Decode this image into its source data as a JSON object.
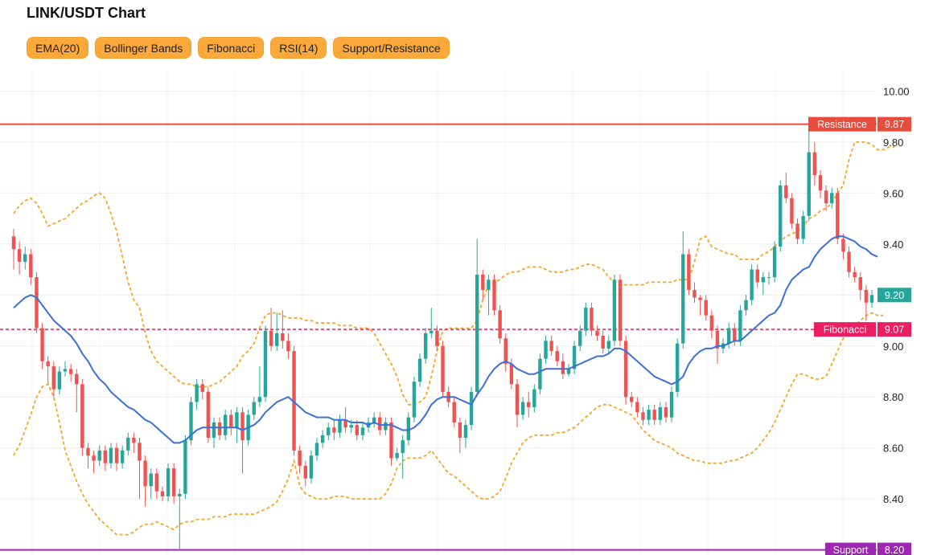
{
  "header": {
    "title": "LINK/USDT Chart"
  },
  "toolbar": {
    "buttons": [
      "EMA(20)",
      "Bollinger Bands",
      "Fibonacci",
      "RSI(14)",
      "Support/Resistance"
    ]
  },
  "colors": {
    "up": "#26a69a",
    "down": "#ef5350",
    "ema": "#3b6fd9",
    "bands": "#f5a623",
    "resistance": "#e74c3c",
    "support": "#9c27b0",
    "fibonacci": "#e91e63"
  },
  "chart_data": {
    "type": "candlestick",
    "title": "LINK/USDT Chart",
    "yticks": [
      "10.00",
      "9.80",
      "9.60",
      "9.40",
      "9.20",
      "9.00",
      "8.80",
      "8.60",
      "8.40"
    ],
    "ylim": [
      8.18,
      10.08
    ],
    "grid": true,
    "candles": [
      [
        9.43,
        9.38,
        9.46,
        9.3
      ],
      [
        9.38,
        9.33,
        9.41,
        9.28
      ],
      [
        9.33,
        9.36,
        9.39,
        9.3
      ],
      [
        9.36,
        9.27,
        9.38,
        9.24
      ],
      [
        9.27,
        9.07,
        9.29,
        9.05
      ],
      [
        9.07,
        8.94,
        9.09,
        8.91
      ],
      [
        8.94,
        8.92,
        8.96,
        8.85
      ],
      [
        8.92,
        8.83,
        8.94,
        8.8
      ],
      [
        8.83,
        8.9,
        8.92,
        8.81
      ],
      [
        8.9,
        8.91,
        8.94,
        8.88
      ],
      [
        8.91,
        8.89,
        8.93,
        8.86
      ],
      [
        8.89,
        8.85,
        8.91,
        8.74
      ],
      [
        8.85,
        8.6,
        8.87,
        8.57
      ],
      [
        8.6,
        8.57,
        8.62,
        8.52
      ],
      [
        8.57,
        8.55,
        8.59,
        8.5
      ],
      [
        8.55,
        8.59,
        8.61,
        8.53
      ],
      [
        8.59,
        8.54,
        8.61,
        8.51
      ],
      [
        8.54,
        8.6,
        8.62,
        8.52
      ],
      [
        8.6,
        8.54,
        8.62,
        8.51
      ],
      [
        8.54,
        8.59,
        8.61,
        8.52
      ],
      [
        8.59,
        8.64,
        8.66,
        8.57
      ],
      [
        8.64,
        8.62,
        8.66,
        8.58
      ],
      [
        8.62,
        8.55,
        8.64,
        8.4
      ],
      [
        8.55,
        8.45,
        8.57,
        8.37
      ],
      [
        8.45,
        8.5,
        8.52,
        8.4
      ],
      [
        8.5,
        8.43,
        8.52,
        8.4
      ],
      [
        8.43,
        8.41,
        8.45,
        8.39
      ],
      [
        8.41,
        8.52,
        8.54,
        8.39
      ],
      [
        8.52,
        8.41,
        8.54,
        8.38
      ],
      [
        8.41,
        8.42,
        8.44,
        8.2
      ],
      [
        8.42,
        8.63,
        8.65,
        8.4
      ],
      [
        8.63,
        8.78,
        8.8,
        8.61
      ],
      [
        8.78,
        8.85,
        8.87,
        8.75
      ],
      [
        8.85,
        8.82,
        8.87,
        8.79
      ],
      [
        8.82,
        8.64,
        8.84,
        8.62
      ],
      [
        8.64,
        8.7,
        8.72,
        8.6
      ],
      [
        8.7,
        8.65,
        8.72,
        8.63
      ],
      [
        8.65,
        8.73,
        8.75,
        8.63
      ],
      [
        8.73,
        8.68,
        8.75,
        8.65
      ],
      [
        8.68,
        8.74,
        8.76,
        8.62
      ],
      [
        8.74,
        8.63,
        8.76,
        8.5
      ],
      [
        8.63,
        8.73,
        8.75,
        8.61
      ],
      [
        8.73,
        8.78,
        8.8,
        8.71
      ],
      [
        8.78,
        8.8,
        8.92,
        8.76
      ],
      [
        8.8,
        9.06,
        9.08,
        8.78
      ],
      [
        9.06,
        9.0,
        9.15,
        8.98
      ],
      [
        9.0,
        9.05,
        9.13,
        8.98
      ],
      [
        9.05,
        9.02,
        9.14,
        8.99
      ],
      [
        9.02,
        8.98,
        9.05,
        8.95
      ],
      [
        8.98,
        8.59,
        9.0,
        8.57
      ],
      [
        8.59,
        8.53,
        8.61,
        8.5
      ],
      [
        8.53,
        8.48,
        8.55,
        8.45
      ],
      [
        8.48,
        8.57,
        8.59,
        8.46
      ],
      [
        8.57,
        8.62,
        8.64,
        8.55
      ],
      [
        8.62,
        8.65,
        8.67,
        8.6
      ],
      [
        8.65,
        8.68,
        8.7,
        8.63
      ],
      [
        8.68,
        8.66,
        8.71,
        8.63
      ],
      [
        8.66,
        8.71,
        8.73,
        8.64
      ],
      [
        8.71,
        8.68,
        8.76,
        8.66
      ],
      [
        8.68,
        8.69,
        8.71,
        8.66
      ],
      [
        8.69,
        8.65,
        8.71,
        8.63
      ],
      [
        8.65,
        8.68,
        8.7,
        8.63
      ],
      [
        8.68,
        8.7,
        8.72,
        8.66
      ],
      [
        8.7,
        8.72,
        8.74,
        8.68
      ],
      [
        8.72,
        8.67,
        8.74,
        8.65
      ],
      [
        8.67,
        8.7,
        8.72,
        8.65
      ],
      [
        8.7,
        8.56,
        8.72,
        8.53
      ],
      [
        8.56,
        8.58,
        8.6,
        8.55
      ],
      [
        8.58,
        8.63,
        8.65,
        8.48
      ],
      [
        8.63,
        8.72,
        8.74,
        8.61
      ],
      [
        8.72,
        8.86,
        8.88,
        8.7
      ],
      [
        8.86,
        8.95,
        8.97,
        8.84
      ],
      [
        8.95,
        9.05,
        9.07,
        8.93
      ],
      [
        9.05,
        9.06,
        9.15,
        9.03
      ],
      [
        9.06,
        9.0,
        9.08,
        8.98
      ],
      [
        9.0,
        8.82,
        9.02,
        8.8
      ],
      [
        8.82,
        8.78,
        8.84,
        8.76
      ],
      [
        8.78,
        8.7,
        8.8,
        8.68
      ],
      [
        8.7,
        8.64,
        8.72,
        8.58
      ],
      [
        8.64,
        8.69,
        8.71,
        8.6
      ],
      [
        8.69,
        8.82,
        8.84,
        8.67
      ],
      [
        8.82,
        9.28,
        9.42,
        8.8
      ],
      [
        9.28,
        9.22,
        9.3,
        9.18
      ],
      [
        9.22,
        9.26,
        9.28,
        9.12
      ],
      [
        9.26,
        9.14,
        9.28,
        9.12
      ],
      [
        9.14,
        9.03,
        9.16,
        9.01
      ],
      [
        9.03,
        8.93,
        9.05,
        8.9
      ],
      [
        8.93,
        8.85,
        8.95,
        8.83
      ],
      [
        8.85,
        8.73,
        8.87,
        8.68
      ],
      [
        8.73,
        8.78,
        8.8,
        8.71
      ],
      [
        8.78,
        8.76,
        8.82,
        8.72
      ],
      [
        8.76,
        8.83,
        8.85,
        8.74
      ],
      [
        8.83,
        8.95,
        8.97,
        8.81
      ],
      [
        8.95,
        9.02,
        9.04,
        8.93
      ],
      [
        9.02,
        8.98,
        9.04,
        8.96
      ],
      [
        8.98,
        8.94,
        9.0,
        8.92
      ],
      [
        8.94,
        8.89,
        8.97,
        8.87
      ],
      [
        8.89,
        8.91,
        8.93,
        8.88
      ],
      [
        8.91,
        9.0,
        9.02,
        8.89
      ],
      [
        9.0,
        9.06,
        9.08,
        8.98
      ],
      [
        9.06,
        9.15,
        9.17,
        9.04
      ],
      [
        9.15,
        9.06,
        9.17,
        9.04
      ],
      [
        9.06,
        9.04,
        9.08,
        9.02
      ],
      [
        9.04,
        8.99,
        9.06,
        8.97
      ],
      [
        8.99,
        9.02,
        9.04,
        8.97
      ],
      [
        9.02,
        9.26,
        9.28,
        9.0
      ],
      [
        9.26,
        9.02,
        9.28,
        9.0
      ],
      [
        9.02,
        8.8,
        9.04,
        8.77
      ],
      [
        8.8,
        8.78,
        8.82,
        8.76
      ],
      [
        8.78,
        8.74,
        8.8,
        8.72
      ],
      [
        8.74,
        8.71,
        8.76,
        8.69
      ],
      [
        8.71,
        8.75,
        8.77,
        8.69
      ],
      [
        8.75,
        8.71,
        8.77,
        8.69
      ],
      [
        8.71,
        8.76,
        8.78,
        8.69
      ],
      [
        8.76,
        8.72,
        8.78,
        8.7
      ],
      [
        8.72,
        8.82,
        8.84,
        8.7
      ],
      [
        8.82,
        9.01,
        9.03,
        8.8
      ],
      [
        9.01,
        9.36,
        9.45,
        8.99
      ],
      [
        9.36,
        9.22,
        9.38,
        9.2
      ],
      [
        9.22,
        9.19,
        9.25,
        9.17
      ],
      [
        9.19,
        9.18,
        9.2,
        9.12
      ],
      [
        9.18,
        9.12,
        9.2,
        9.1
      ],
      [
        9.12,
        9.06,
        9.14,
        9.03
      ],
      [
        9.06,
        8.99,
        9.08,
        8.93
      ],
      [
        8.99,
        9.01,
        9.03,
        8.97
      ],
      [
        9.01,
        9.07,
        9.09,
        8.99
      ],
      [
        9.07,
        9.02,
        9.09,
        9.0
      ],
      [
        9.02,
        9.14,
        9.16,
        9.0
      ],
      [
        9.14,
        9.18,
        9.2,
        9.12
      ],
      [
        9.18,
        9.3,
        9.32,
        9.16
      ],
      [
        9.3,
        9.25,
        9.32,
        9.23
      ],
      [
        9.25,
        9.27,
        9.29,
        9.2
      ],
      [
        9.27,
        9.27,
        9.29,
        9.24
      ],
      [
        9.27,
        9.39,
        9.41,
        9.25
      ],
      [
        9.39,
        9.63,
        9.65,
        9.37
      ],
      [
        9.63,
        9.58,
        9.68,
        9.56
      ],
      [
        9.58,
        9.48,
        9.6,
        9.46
      ],
      [
        9.48,
        9.42,
        9.5,
        9.4
      ],
      [
        9.42,
        9.51,
        9.53,
        9.4
      ],
      [
        9.51,
        9.76,
        9.87,
        9.49
      ],
      [
        9.76,
        9.67,
        9.8,
        9.63
      ],
      [
        9.67,
        9.61,
        9.69,
        9.58
      ],
      [
        9.61,
        9.56,
        9.63,
        9.53
      ],
      [
        9.56,
        9.6,
        9.62,
        9.54
      ],
      [
        9.6,
        9.42,
        9.62,
        9.4
      ],
      [
        9.42,
        9.37,
        9.44,
        9.34
      ],
      [
        9.37,
        9.29,
        9.39,
        9.27
      ],
      [
        9.29,
        9.27,
        9.31,
        9.25
      ],
      [
        9.27,
        9.22,
        9.29,
        9.18
      ],
      [
        9.22,
        9.17,
        9.24,
        9.1
      ],
      [
        9.17,
        9.2,
        9.22,
        9.15
      ]
    ],
    "ema": [
      9.15,
      9.17,
      9.19,
      9.2,
      9.19,
      9.16,
      9.13,
      9.1,
      9.08,
      9.06,
      9.04,
      9.01,
      8.97,
      8.94,
      8.9,
      8.87,
      8.85,
      8.82,
      8.8,
      8.78,
      8.76,
      8.75,
      8.73,
      8.71,
      8.7,
      8.68,
      8.66,
      8.64,
      8.62,
      8.62,
      8.63,
      8.65,
      8.67,
      8.68,
      8.68,
      8.68,
      8.68,
      8.68,
      8.68,
      8.68,
      8.67,
      8.68,
      8.69,
      8.71,
      8.74,
      8.76,
      8.78,
      8.79,
      8.8,
      8.78,
      8.76,
      8.74,
      8.73,
      8.72,
      8.72,
      8.72,
      8.71,
      8.71,
      8.71,
      8.7,
      8.7,
      8.7,
      8.69,
      8.7,
      8.69,
      8.69,
      8.69,
      8.68,
      8.67,
      8.67,
      8.68,
      8.7,
      8.73,
      8.77,
      8.79,
      8.8,
      8.8,
      8.8,
      8.79,
      8.78,
      8.77,
      8.81,
      8.84,
      8.88,
      8.91,
      8.93,
      8.94,
      8.93,
      8.91,
      8.9,
      8.89,
      8.89,
      8.9,
      8.91,
      8.91,
      8.91,
      8.91,
      8.91,
      8.92,
      8.93,
      8.94,
      8.95,
      8.96,
      8.96,
      8.97,
      8.99,
      8.99,
      8.98,
      8.96,
      8.94,
      8.92,
      8.9,
      8.88,
      8.87,
      8.86,
      8.85,
      8.86,
      8.88,
      8.93,
      8.96,
      8.98,
      8.99,
      8.99,
      9.0,
      9.0,
      9.01,
      9.02,
      9.02,
      9.04,
      9.06,
      9.08,
      9.1,
      9.12,
      9.13,
      9.16,
      9.22,
      9.26,
      9.28,
      9.3,
      9.31,
      9.35,
      9.38,
      9.4,
      9.42,
      9.43,
      9.43,
      9.42,
      9.41,
      9.39,
      9.38,
      9.36,
      9.35
    ],
    "bb_upper": [
      9.52,
      9.55,
      9.57,
      9.58,
      9.56,
      9.52,
      9.47,
      9.48,
      9.49,
      9.5,
      9.52,
      9.54,
      9.56,
      9.57,
      9.59,
      9.6,
      9.58,
      9.52,
      9.45,
      9.35,
      9.25,
      9.18,
      9.15,
      9.05,
      8.98,
      8.94,
      8.92,
      8.9,
      8.88,
      8.86,
      8.85,
      8.85,
      8.84,
      8.84,
      8.84,
      8.85,
      8.86,
      8.88,
      8.9,
      8.92,
      8.96,
      8.98,
      9.01,
      9.07,
      9.12,
      9.13,
      9.13,
      9.12,
      9.11,
      9.11,
      9.11,
      9.1,
      9.1,
      9.09,
      9.09,
      9.09,
      9.09,
      9.08,
      9.08,
      9.08,
      9.07,
      9.07,
      9.07,
      9.05,
      9.01,
      8.97,
      8.93,
      8.88,
      8.81,
      8.77,
      8.77,
      8.78,
      8.8,
      8.88,
      8.98,
      9.06,
      9.07,
      9.07,
      9.07,
      9.07,
      9.07,
      9.1,
      9.18,
      9.24,
      9.25,
      9.26,
      9.28,
      9.29,
      9.29,
      9.3,
      9.31,
      9.31,
      9.31,
      9.3,
      9.29,
      9.29,
      9.29,
      9.3,
      9.3,
      9.31,
      9.32,
      9.32,
      9.31,
      9.3,
      9.27,
      9.25,
      9.24,
      9.24,
      9.24,
      9.24,
      9.24,
      9.25,
      9.25,
      9.25,
      9.25,
      9.25,
      9.26,
      9.26,
      9.26,
      9.33,
      9.42,
      9.43,
      9.39,
      9.38,
      9.37,
      9.36,
      9.36,
      9.34,
      9.34,
      9.34,
      9.34,
      9.36,
      9.37,
      9.39,
      9.41,
      9.43,
      9.44,
      9.45,
      9.47,
      9.5,
      9.51,
      9.53,
      9.54,
      9.56,
      9.6,
      9.63,
      9.73,
      9.8,
      9.8,
      9.8,
      9.79,
      9.77,
      9.77,
      9.78,
      9.78
    ],
    "bb_lower": [
      8.57,
      8.61,
      8.67,
      8.73,
      8.8,
      8.84,
      8.85,
      8.8,
      8.7,
      8.59,
      8.53,
      8.47,
      8.42,
      8.38,
      8.35,
      8.32,
      8.3,
      8.28,
      8.26,
      8.26,
      8.26,
      8.27,
      8.29,
      8.3,
      8.3,
      8.31,
      8.3,
      8.29,
      8.28,
      8.3,
      8.31,
      8.31,
      8.32,
      8.32,
      8.32,
      8.33,
      8.33,
      8.33,
      8.34,
      8.34,
      8.34,
      8.34,
      8.34,
      8.35,
      8.36,
      8.37,
      8.39,
      8.43,
      8.48,
      8.55,
      8.45,
      8.42,
      8.41,
      8.4,
      8.4,
      8.4,
      8.41,
      8.41,
      8.41,
      8.4,
      8.4,
      8.4,
      8.4,
      8.4,
      8.4,
      8.42,
      8.46,
      8.52,
      8.55,
      8.56,
      8.56,
      8.56,
      8.57,
      8.59,
      8.56,
      8.53,
      8.5,
      8.49,
      8.47,
      8.45,
      8.43,
      8.41,
      8.4,
      8.4,
      8.41,
      8.43,
      8.48,
      8.54,
      8.58,
      8.62,
      8.64,
      8.65,
      8.65,
      8.65,
      8.65,
      8.66,
      8.66,
      8.67,
      8.68,
      8.7,
      8.72,
      8.74,
      8.76,
      8.77,
      8.77,
      8.76,
      8.75,
      8.74,
      8.73,
      8.7,
      8.67,
      8.65,
      8.63,
      8.62,
      8.61,
      8.6,
      8.58,
      8.57,
      8.56,
      8.55,
      8.55,
      8.54,
      8.54,
      8.54,
      8.54,
      8.55,
      8.55,
      8.56,
      8.57,
      8.58,
      8.6,
      8.63,
      8.66,
      8.7,
      8.75,
      8.8,
      8.85,
      8.89,
      8.89,
      8.88,
      8.87,
      8.87,
      8.88,
      8.93,
      8.98,
      9.03,
      9.06,
      9.08,
      9.1,
      9.12,
      9.13,
      9.12,
      9.12
    ],
    "levels": [
      {
        "name": "Resistance",
        "value": 9.87,
        "label": "9.87",
        "style": "solid",
        "color_key": "resistance"
      },
      {
        "name": "Fibonacci",
        "value": 9.065,
        "label": "9.07",
        "style": "dashed",
        "color_key": "fibonacci"
      },
      {
        "name": "Support",
        "value": 8.2,
        "label": "8.20",
        "style": "solid",
        "color_key": "support"
      }
    ],
    "last_price": {
      "value": 9.2,
      "label": "9.20"
    }
  }
}
